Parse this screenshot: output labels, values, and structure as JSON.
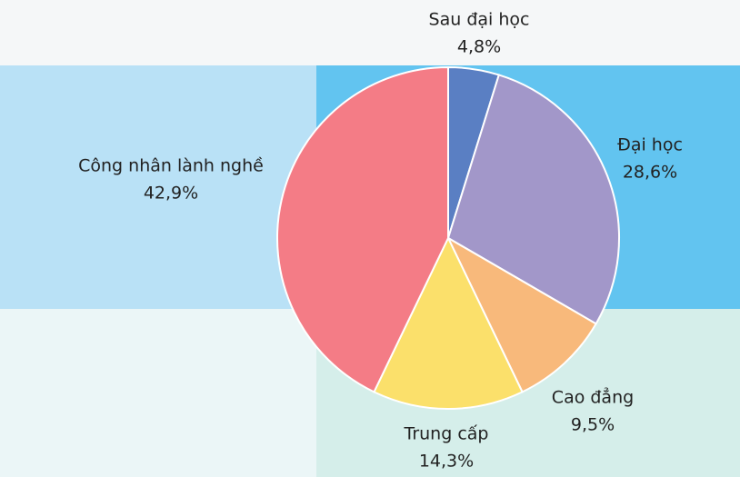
{
  "chart_data": {
    "type": "pie",
    "categories": [
      "Sau đại học",
      "Đại học",
      "Cao đẳng",
      "Trung cấp",
      "Công nhân lành nghề"
    ],
    "values": [
      4.8,
      28.6,
      9.5,
      14.3,
      42.9
    ],
    "value_labels": [
      "4,8%",
      "28,6%",
      "9,5%",
      "14,3%",
      "42,9%"
    ],
    "colors": [
      "#5a7fc3",
      "#a297c9",
      "#f8b97b",
      "#fbe06b",
      "#f47c86"
    ]
  }
}
